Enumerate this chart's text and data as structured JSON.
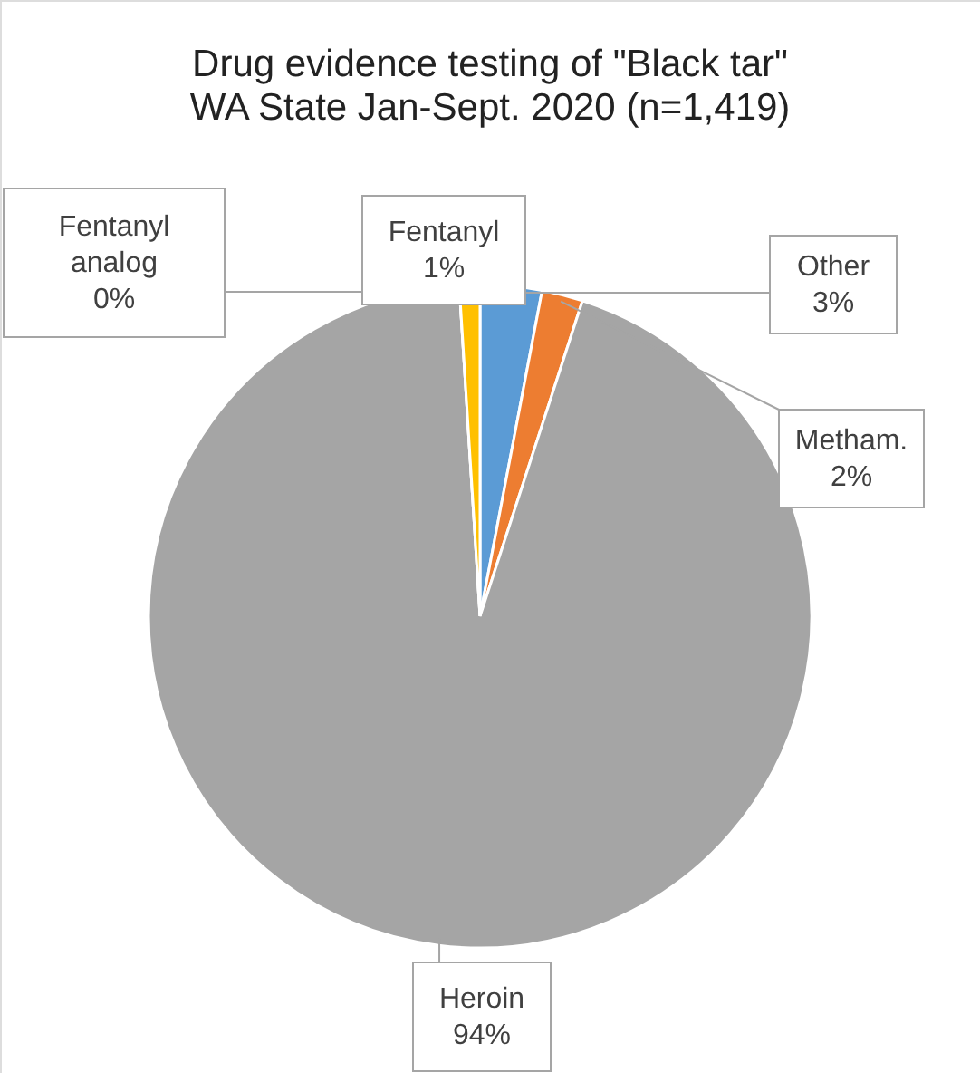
{
  "chart_data": {
    "type": "pie",
    "title": "Drug evidence testing of \"Black tar\"",
    "subtitle": "WA State Jan-Sept. 2020 (n=1,419)",
    "categories": [
      "Other",
      "Metham.",
      "Heroin",
      "Fentanyl analog",
      "Fentanyl"
    ],
    "values": [
      3,
      2,
      94,
      0,
      1
    ],
    "colors": [
      "#5b9bd5",
      "#ed7d31",
      "#a5a5a5",
      "#4472c4",
      "#ffc000"
    ],
    "value_labels": [
      "3%",
      "2%",
      "94%",
      "0%",
      "1%"
    ]
  }
}
